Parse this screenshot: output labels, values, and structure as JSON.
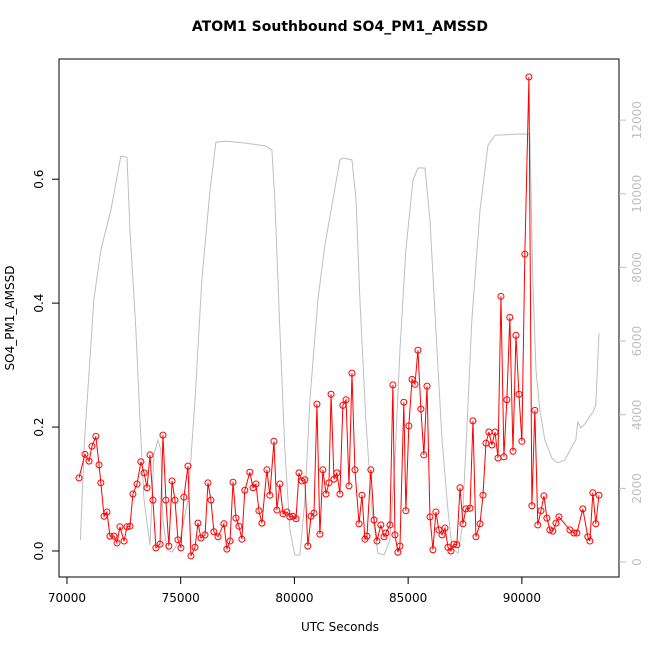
{
  "chart_data": {
    "type": "line",
    "title": "ATOM1 Southbound SO4_PM1_AMSSD",
    "x_label": "UTC Seconds",
    "y_label": "SO4_PM1_AMSSD",
    "xlim": [
      69650,
      94270
    ],
    "ylim": [
      -0.042,
      0.794
    ],
    "y2lim": [
      -407,
      13660
    ],
    "xticks": [
      70000,
      75000,
      80000,
      85000,
      90000
    ],
    "yticks": [
      {
        "value": 0,
        "label": "0.0"
      },
      0.2,
      0.4,
      0.6
    ],
    "y2ticks": [
      0,
      2000,
      4000,
      6000,
      8000,
      10000,
      12000
    ],
    "y2_color": "#bebebe",
    "grid": false,
    "series": [
      {
        "color": "#ff0000",
        "marker": "circle",
        "x": [
          70530,
          70790,
          70970,
          71100,
          71270,
          71410,
          71490,
          71630,
          71760,
          71890,
          72070,
          72200,
          72330,
          72510,
          72640,
          72770,
          72900,
          73080,
          73250,
          73390,
          73520,
          73650,
          73780,
          73910,
          74090,
          74220,
          74350,
          74480,
          74620,
          74750,
          74880,
          75010,
          75140,
          75320,
          75450,
          75630,
          75760,
          75890,
          76070,
          76200,
          76330,
          76460,
          76640,
          76900,
          77030,
          77170,
          77300,
          77430,
          77560,
          77690,
          77820,
          78040,
          78180,
          78310,
          78440,
          78570,
          78790,
          78920,
          79100,
          79230,
          79360,
          79500,
          79670,
          79800,
          79930,
          80070,
          80200,
          80330,
          80460,
          80590,
          80730,
          80860,
          80990,
          81120,
          81250,
          81390,
          81520,
          81610,
          81740,
          81870,
          82000,
          82130,
          82270,
          82400,
          82530,
          82660,
          82840,
          82970,
          83100,
          83190,
          83360,
          83500,
          83630,
          83800,
          83940,
          84020,
          84200,
          84330,
          84420,
          84550,
          84640,
          84810,
          84900,
          85030,
          85170,
          85300,
          85430,
          85560,
          85690,
          85830,
          85960,
          86090,
          86220,
          86350,
          86490,
          86620,
          86750,
          86880,
          87010,
          87140,
          87280,
          87410,
          87540,
          87720,
          87850,
          87980,
          88160,
          88290,
          88420,
          88550,
          88680,
          88820,
          88950,
          89080,
          89210,
          89340,
          89470,
          89610,
          89740,
          89870,
          90000,
          90130,
          90310,
          90440,
          90570,
          90700,
          90840,
          90970,
          91100,
          91230,
          91360,
          91500,
          91630,
          92110,
          92290,
          92420,
          92680,
          92900,
          92990,
          93120,
          93250,
          93390
        ],
        "values": [
          0.118,
          0.156,
          0.145,
          0.169,
          0.185,
          0.139,
          0.11,
          0.056,
          0.063,
          0.024,
          0.024,
          0.013,
          0.039,
          0.016,
          0.039,
          0.04,
          0.092,
          0.108,
          0.144,
          0.126,
          0.102,
          0.155,
          0.082,
          0.005,
          0.011,
          0.187,
          0.082,
          0.008,
          0.113,
          0.082,
          0.018,
          0.005,
          0.087,
          0.137,
          -0.008,
          0.006,
          0.045,
          0.021,
          0.026,
          0.11,
          0.082,
          0.031,
          0.023,
          0.044,
          0.003,
          0.016,
          0.111,
          0.053,
          0.04,
          0.019,
          0.098,
          0.127,
          0.102,
          0.108,
          0.065,
          0.045,
          0.131,
          0.09,
          0.177,
          0.066,
          0.108,
          0.06,
          0.063,
          0.055,
          0.056,
          0.052,
          0.126,
          0.113,
          0.115,
          0.008,
          0.056,
          0.061,
          0.237,
          0.027,
          0.131,
          0.092,
          0.11,
          0.253,
          0.116,
          0.126,
          0.092,
          0.235,
          0.244,
          0.105,
          0.287,
          0.131,
          0.044,
          0.09,
          0.019,
          0.024,
          0.131,
          0.05,
          0.016,
          0.042,
          0.023,
          0.029,
          0.042,
          0.268,
          0.026,
          -0.002,
          0.008,
          0.24,
          0.065,
          0.202,
          0.277,
          0.269,
          0.324,
          0.229,
          0.155,
          0.266,
          0.055,
          0.002,
          0.063,
          0.034,
          0.026,
          0.037,
          0.006,
          0.0,
          0.011,
          0.01,
          0.102,
          0.044,
          0.068,
          0.069,
          0.21,
          0.023,
          0.044,
          0.09,
          0.174,
          0.192,
          0.171,
          0.192,
          0.15,
          0.411,
          0.152,
          0.244,
          0.377,
          0.161,
          0.348,
          0.253,
          0.177,
          0.479,
          0.765,
          0.073,
          0.227,
          0.042,
          0.065,
          0.089,
          0.053,
          0.034,
          0.032,
          0.045,
          0.055,
          0.034,
          0.029,
          0.029,
          0.068,
          0.023,
          0.016,
          0.094,
          0.044,
          0.09
        ]
      },
      {
        "color": "#bebebe",
        "axis": "y2",
        "x": [
          70590,
          70770,
          70950,
          71180,
          71490,
          71930,
          72370,
          72640,
          72770,
          73030,
          73210,
          73390,
          73650,
          73820,
          74000,
          74130,
          74220,
          74400,
          74620,
          74970,
          75320,
          75630,
          75930,
          76290,
          76550,
          76950,
          77820,
          78700,
          79010,
          79140,
          79360,
          79580,
          79800,
          80020,
          80240,
          80460,
          80680,
          81030,
          81340,
          81690,
          82000,
          82130,
          82530,
          82710,
          82880,
          83140,
          83410,
          83670,
          83940,
          84200,
          84420,
          84640,
          84900,
          85210,
          85430,
          85740,
          85960,
          86220,
          86490,
          86750,
          86930,
          87190,
          87360,
          87580,
          87800,
          88160,
          88510,
          88820,
          89910,
          90350,
          90480,
          90620,
          90790,
          91010,
          91320,
          91580,
          91890,
          92240,
          92370,
          92460,
          92590,
          92770,
          92940,
          93120,
          93250,
          93390
        ],
        "values": [
          600,
          3310,
          4940,
          7110,
          8470,
          9560,
          11020,
          10990,
          9010,
          6300,
          3860,
          1680,
          460,
          2910,
          3310,
          3040,
          1140,
          330,
          270,
          600,
          1680,
          4400,
          7660,
          10100,
          11400,
          11430,
          11380,
          11300,
          11190,
          9830,
          6300,
          3040,
          870,
          190,
          190,
          1680,
          4400,
          7110,
          8610,
          9830,
          10920,
          10970,
          10920,
          9830,
          7110,
          3860,
          1410,
          240,
          190,
          600,
          2770,
          5760,
          8470,
          10370,
          10700,
          10700,
          9290,
          6300,
          3310,
          1410,
          380,
          240,
          870,
          3580,
          6570,
          9560,
          11320,
          11590,
          11620,
          11620,
          7660,
          5210,
          4130,
          3310,
          2820,
          2690,
          2770,
          3180,
          3310,
          3800,
          3640,
          3750,
          3910,
          4070,
          4260,
          6220
        ]
      }
    ]
  }
}
